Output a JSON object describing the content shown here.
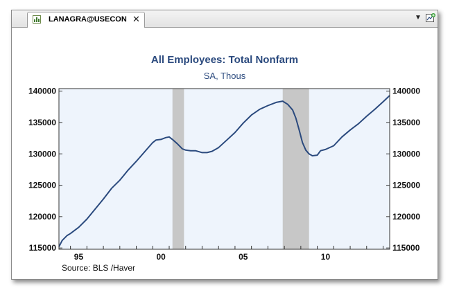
{
  "tab": {
    "title": "LANAGRA@USECON",
    "close_glyph": "✕",
    "icon": "chart-icon"
  },
  "toolbar": {
    "dropdown_glyph": "▼",
    "new_chart_icon": "new-chart-icon"
  },
  "colors": {
    "line": "#2b4a7e",
    "plot_bg": "#eef4fc",
    "recession": "#c7c7c7",
    "title": "#2b4a7e"
  },
  "chart_data": {
    "type": "line",
    "title": "All Employees: Total Nonfarm",
    "subtitle": "SA, Thous",
    "source": "Source:  BLS /Haver",
    "xlim": [
      1994.3,
      2014.4
    ],
    "ylim": [
      114800,
      140400
    ],
    "yticks": [
      115000,
      120000,
      125000,
      130000,
      135000,
      140000
    ],
    "ytick_labels": [
      "115000",
      "120000",
      "125000",
      "130000",
      "135000",
      "140000"
    ],
    "xticks": [
      1995.5,
      2000.5,
      2005.5,
      2010.5
    ],
    "xtick_labels": [
      "95",
      "00",
      "05",
      "10"
    ],
    "recessions": [
      [
        2001.2,
        2001.9
      ],
      [
        2007.9,
        2009.5
      ]
    ],
    "series": [
      {
        "x": [
          1994.3,
          1994.5,
          1994.8,
          1995.0,
          1995.5,
          1996.0,
          1996.5,
          1997.0,
          1997.5,
          1998.0,
          1998.5,
          1999.0,
          1999.5,
          2000.0,
          2000.2,
          2000.5,
          2000.8,
          2001.0,
          2001.2,
          2001.5,
          2001.8,
          2002.0,
          2002.3,
          2002.6,
          2003.0,
          2003.3,
          2003.6,
          2004.0,
          2004.5,
          2005.0,
          2005.5,
          2006.0,
          2006.5,
          2007.0,
          2007.5,
          2007.9,
          2008.2,
          2008.5,
          2008.7,
          2008.9,
          2009.1,
          2009.3,
          2009.5,
          2009.7,
          2010.0,
          2010.2,
          2010.5,
          2011.0,
          2011.5,
          2012.0,
          2012.5,
          2013.0,
          2013.5,
          2014.0,
          2014.4
        ],
        "y": [
          115200,
          116200,
          117000,
          117300,
          118300,
          119600,
          121200,
          122800,
          124500,
          125800,
          127400,
          128800,
          130300,
          131800,
          132200,
          132300,
          132600,
          132700,
          132300,
          131600,
          130800,
          130600,
          130500,
          130500,
          130200,
          130200,
          130400,
          131000,
          132200,
          133400,
          134900,
          136200,
          137100,
          137700,
          138200,
          138400,
          137900,
          137000,
          135700,
          133800,
          131800,
          130600,
          130000,
          129700,
          129800,
          130500,
          130700,
          131300,
          132700,
          133800,
          134800,
          136000,
          137100,
          138300,
          139300
        ]
      }
    ]
  }
}
